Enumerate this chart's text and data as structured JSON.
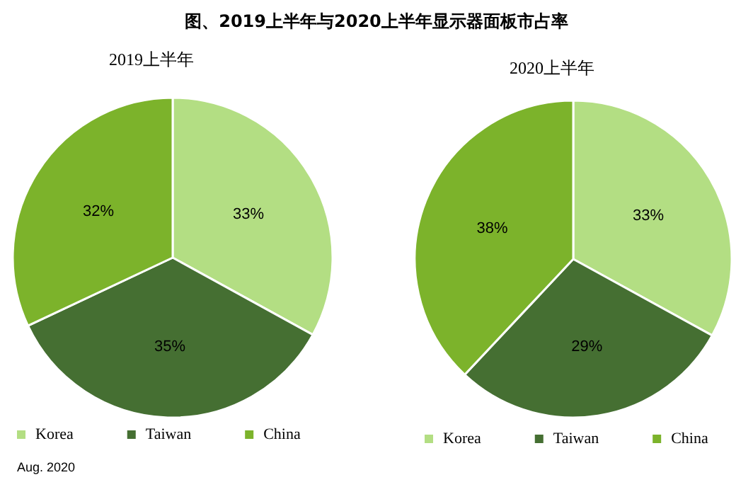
{
  "chart_data": [
    {
      "type": "pie",
      "title": "图、2019上半年与2020上半年显示器面板市占率",
      "subtitle": "2019上半年",
      "categories": [
        "Korea",
        "Taiwan",
        "China"
      ],
      "values": [
        33,
        35,
        32
      ],
      "colors": [
        "#b3de83",
        "#456f32",
        "#7cb32b"
      ],
      "value_labels": [
        "33%",
        "35%",
        "32%"
      ],
      "legend": "bottom",
      "annotations": [
        "Aug. 2020"
      ]
    },
    {
      "type": "pie",
      "subtitle": "2020上半年",
      "categories": [
        "Korea",
        "Taiwan",
        "China"
      ],
      "values": [
        33,
        29,
        38
      ],
      "colors": [
        "#b3de83",
        "#456f32",
        "#7cb32b"
      ],
      "value_labels": [
        "33%",
        "29%",
        "38%"
      ],
      "legend": "bottom"
    }
  ]
}
